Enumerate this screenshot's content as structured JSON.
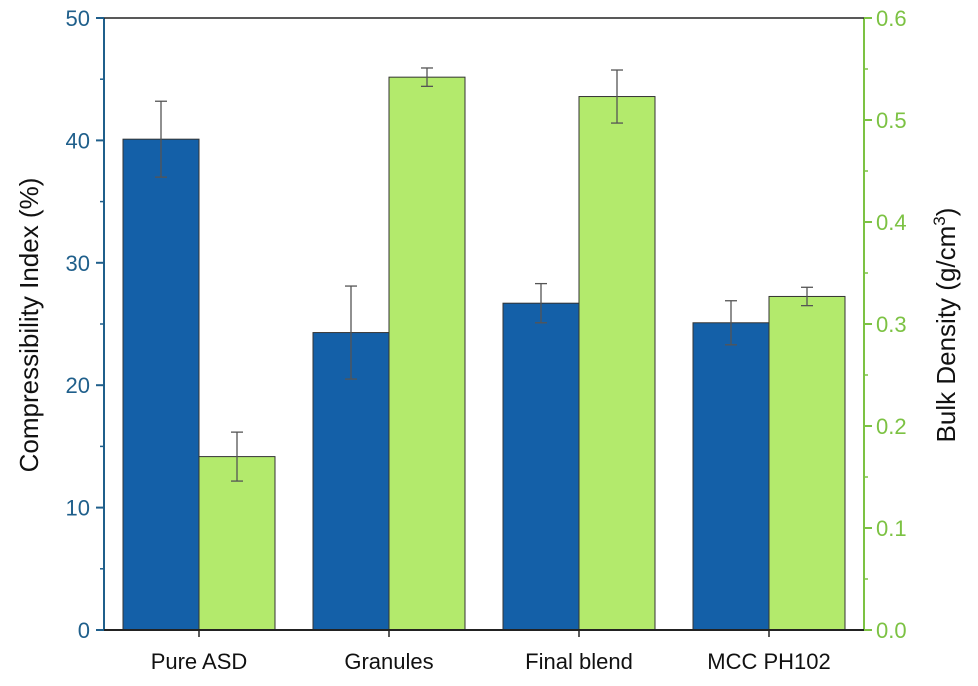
{
  "chart_data": {
    "type": "bar",
    "categories": [
      "Pure ASD",
      "Granules",
      "Final blend",
      "MCC PH102"
    ],
    "series": [
      {
        "axis": "left",
        "color": "#1460a8",
        "values": [
          40.1,
          24.3,
          26.7,
          25.1
        ],
        "errors": [
          3.1,
          3.8,
          1.6,
          1.8
        ]
      },
      {
        "axis": "right",
        "color": "#b3ea6c",
        "values": [
          0.17,
          0.542,
          0.523,
          0.327
        ],
        "errors": [
          0.024,
          0.009,
          0.026,
          0.009
        ]
      }
    ],
    "left_axis": {
      "label": "Compressibility Index (%)",
      "ylim": [
        0,
        50
      ],
      "ticks": [
        "0",
        "10",
        "20",
        "30",
        "40",
        "50"
      ],
      "color": "#1f5f8b"
    },
    "right_axis": {
      "label_main": "Bulk Density (g/cm",
      "label_sup": "3",
      "label_close": ")",
      "ylim": [
        0,
        0.6
      ],
      "ticks": [
        "0.0",
        "0.1",
        "0.2",
        "0.3",
        "0.4",
        "0.5",
        "0.6"
      ],
      "color": "#7cc243"
    },
    "grid": false
  }
}
